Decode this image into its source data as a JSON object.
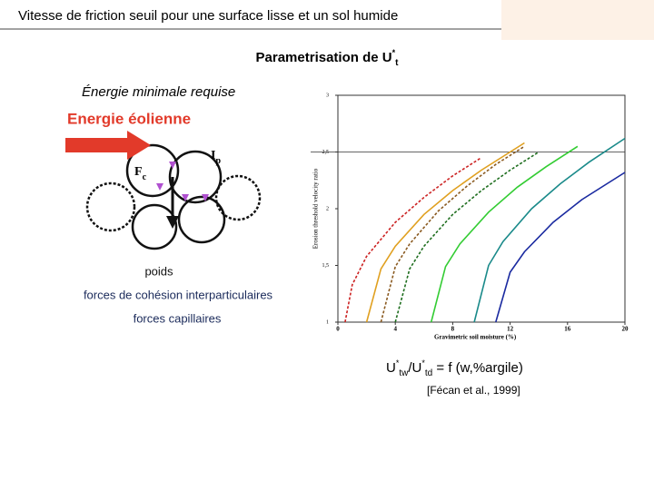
{
  "header": {
    "title": "Vitesse de friction seuil pour une surface lisse et un sol humide"
  },
  "subtitle": [
    {
      "text": "Parametrisation de U"
    },
    {
      "text": "*",
      "pos": "sup"
    },
    {
      "text": "t",
      "pos": "sub"
    }
  ],
  "diagram": {
    "caption": "Énergie minimale requise",
    "wind_label": "Energie éolienne",
    "forces": [
      {
        "main": "F",
        "sub": "c"
      },
      {
        "main": "I",
        "sub": "p"
      },
      {
        "main": "P"
      }
    ],
    "legend": [
      "poids",
      "forces de cohésion interparticulaires",
      "forces capillaires"
    ]
  },
  "formula": [
    {
      "text": "U"
    },
    {
      "text": "*",
      "pos": "sup"
    },
    {
      "text": "tw",
      "pos": "sub"
    },
    {
      "text": "/U"
    },
    {
      "text": "*",
      "pos": "sup"
    },
    {
      "text": "td",
      "pos": "sub"
    },
    {
      "text": " = f (w,%argile)"
    }
  ],
  "citation": "[Fécan et al., 1999]",
  "chart_data": {
    "type": "line",
    "xlabel": "Gravimetric soil moisture (%)",
    "ylabel": "Erosion threshold velocity ratio",
    "xlim": [
      0,
      20
    ],
    "ylim": [
      1,
      3
    ],
    "xticks": [
      0,
      4,
      8,
      12,
      16,
      20
    ],
    "yticks": [
      1,
      {
        "value": 1.5,
        "label": "1,5"
      },
      2,
      {
        "value": 2.5,
        "label": "2,5"
      },
      3
    ],
    "refline": 2.5,
    "series": [
      {
        "color": "#cc2222",
        "dashed": true,
        "x": [
          0.5,
          1,
          2,
          4,
          6,
          8,
          10
        ],
        "values": [
          1,
          1.33,
          1.58,
          1.88,
          2.1,
          2.29,
          2.45
        ]
      },
      {
        "color": "#e0a020",
        "dashed": false,
        "x": [
          2,
          3,
          4,
          6,
          8,
          10,
          12,
          13
        ],
        "values": [
          1,
          1.47,
          1.67,
          1.95,
          2.16,
          2.34,
          2.5,
          2.58
        ]
      },
      {
        "color": "#8a5a20",
        "dashed": true,
        "x": [
          3,
          4,
          5,
          7,
          9,
          11,
          13
        ],
        "values": [
          1,
          1.49,
          1.69,
          1.98,
          2.2,
          2.39,
          2.55
        ]
      },
      {
        "color": "#1f6e1f",
        "dashed": true,
        "x": [
          4,
          5,
          6,
          8,
          10,
          12,
          14
        ],
        "values": [
          1,
          1.47,
          1.67,
          1.95,
          2.16,
          2.34,
          2.5
        ]
      },
      {
        "color": "#33cc33",
        "dashed": false,
        "x": [
          6.5,
          7.5,
          8.5,
          10.5,
          12.5,
          14.5,
          16.7
        ],
        "values": [
          1,
          1.49,
          1.69,
          1.97,
          2.19,
          2.37,
          2.55
        ]
      },
      {
        "color": "#1a8a8a",
        "dashed": false,
        "x": [
          9.5,
          10.5,
          11.5,
          13.5,
          15.5,
          17.5,
          20
        ],
        "values": [
          1,
          1.5,
          1.71,
          2,
          2.22,
          2.41,
          2.62
        ]
      },
      {
        "color": "#1a2aa0",
        "dashed": false,
        "x": [
          11,
          12,
          13,
          15,
          17,
          20
        ],
        "values": [
          1,
          1.44,
          1.62,
          1.88,
          2.08,
          2.32
        ]
      }
    ]
  }
}
